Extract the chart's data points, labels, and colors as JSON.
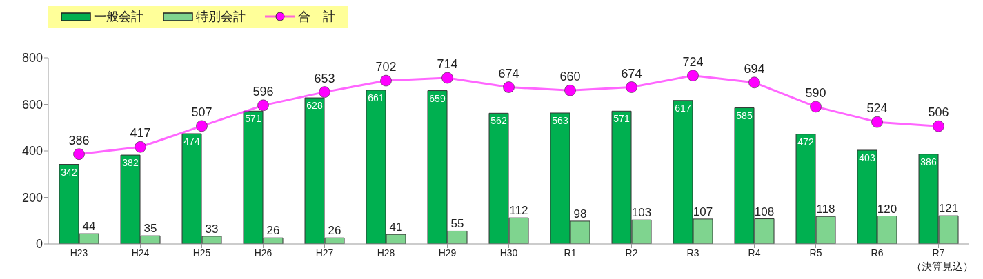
{
  "chart_data": {
    "type": "bar",
    "categories": [
      "H23",
      "H24",
      "H25",
      "H26",
      "H27",
      "H28",
      "H29",
      "H30",
      "R1",
      "R2",
      "R3",
      "R4",
      "R5",
      "R6",
      "R7"
    ],
    "series": [
      {
        "name": "一般会計",
        "color": "#00b050",
        "values": [
          342,
          382,
          474,
          571,
          628,
          661,
          659,
          562,
          563,
          571,
          617,
          585,
          472,
          403,
          386
        ]
      },
      {
        "name": "特別会計",
        "color": "#7fd48f",
        "values": [
          44,
          35,
          33,
          26,
          26,
          41,
          55,
          112,
          98,
          103,
          107,
          108,
          118,
          120,
          121
        ]
      },
      {
        "name": "合　計",
        "type": "line",
        "color": "#ff00ff",
        "values": [
          386,
          417,
          507,
          596,
          653,
          702,
          714,
          674,
          660,
          674,
          724,
          694,
          590,
          524,
          506
        ]
      }
    ],
    "ylim": [
      0,
      800
    ],
    "yticks": [
      0,
      200,
      400,
      600,
      800
    ],
    "grid": false,
    "legend": "top left",
    "data_labels": true,
    "marker": "circle",
    "line_style": "solid",
    "annotations": [
      "（決算見込）"
    ]
  }
}
